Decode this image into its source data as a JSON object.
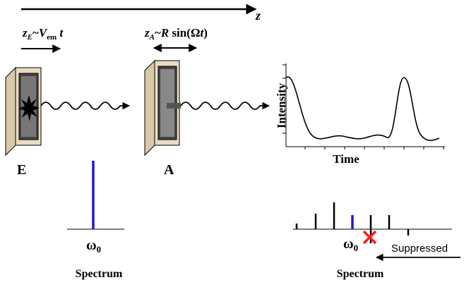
{
  "axis_label": "z",
  "emitter": {
    "label": "E",
    "motion": {
      "z": "z",
      "z_sub": "E",
      "sep": "~",
      "v": "V",
      "v_sub": "em",
      "t": " t"
    }
  },
  "absorber": {
    "label": "A",
    "motion": {
      "z": "z",
      "z_sub": "A",
      "sep": "~",
      "r": "R",
      "rest": " sin(",
      "omega": "Ω",
      "t": "t",
      "close": ")"
    }
  },
  "intensity_plot": {
    "y_label": "Intensity",
    "x_label": "Time"
  },
  "left_spectrum": {
    "freq": "ω",
    "freq_sub": "0",
    "title": "Spectrum"
  },
  "right_spectrum": {
    "freq": "ω",
    "freq_sub": "0",
    "note": "Suppressed",
    "title": "Spectrum"
  }
}
